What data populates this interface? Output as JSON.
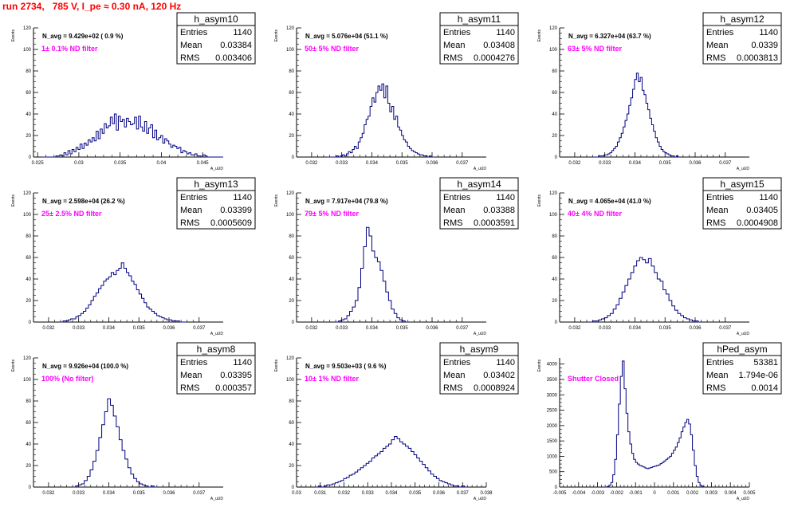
{
  "header": {
    "run_title": "run 2734,   785 V, I_pe ≈ 0.30 nA, 120 Hz"
  },
  "colors": {
    "title": "#ff0000",
    "filter_text": "#ff00ff",
    "histogram": "#000080",
    "axes": "#000000"
  },
  "stats_labels": {
    "entries": "Entries",
    "mean": "Mean",
    "rms": "RMS"
  },
  "common": {
    "y_label": "Events",
    "x_label": "A_uUD"
  },
  "chart_data": [
    {
      "type": "histogram",
      "name": "h_asym10",
      "navg": "N_avg = 9.429e+02 ( 0.9 %)",
      "filter": "1± 0.1% ND filter",
      "entries": "1140",
      "mean": "0.03384",
      "rms": "0.003406",
      "xlim": [
        0.0245,
        0.0475
      ],
      "ylim": [
        0,
        120
      ],
      "xticks": [
        0.025,
        0.03,
        0.035,
        0.04,
        0.045
      ],
      "xtick_labels": [
        "0.025",
        "0.03",
        "0.035",
        "0.04",
        "0.045"
      ],
      "yticks": [
        0,
        20,
        40,
        60,
        80,
        100,
        120
      ],
      "ytick_labels": [
        "0",
        "20",
        "40",
        "60",
        "80",
        "100",
        "120"
      ],
      "bins": [
        0.0255,
        0.0475
      ],
      "values": [
        0,
        0,
        0,
        0,
        0,
        0,
        0,
        1,
        1,
        2,
        1,
        4,
        2,
        6,
        3,
        7,
        5,
        9,
        7,
        12,
        8,
        13,
        11,
        16,
        14,
        18,
        15,
        24,
        17,
        26,
        22,
        31,
        27,
        29,
        37,
        31,
        40,
        25,
        38,
        33,
        35,
        28,
        36,
        33,
        30,
        31,
        37,
        26,
        38,
        28,
        24,
        33,
        22,
        27,
        30,
        18,
        25,
        16,
        18,
        20,
        13,
        17,
        15,
        12,
        9,
        11,
        10,
        8,
        9,
        4,
        6,
        5,
        3,
        4,
        2,
        2,
        3,
        1,
        1,
        0,
        2,
        1,
        0,
        0,
        0,
        0,
        0,
        0,
        0,
        0
      ]
    },
    {
      "type": "histogram",
      "name": "h_asym11",
      "navg": "N_avg = 5.076e+04 (51.1 %)",
      "filter": "50± 5% ND filter",
      "entries": "1140",
      "mean": "0.03408",
      "rms": "0.0004276",
      "xlim": [
        0.0315,
        0.0378
      ],
      "ylim": [
        0,
        120
      ],
      "xticks": [
        0.032,
        0.033,
        0.034,
        0.035,
        0.036,
        0.037
      ],
      "xtick_labels": [
        "0.032",
        "0.033",
        "0.034",
        "0.035",
        "0.036",
        "0.037"
      ],
      "yticks": [
        0,
        20,
        40,
        60,
        80,
        100,
        120
      ],
      "ytick_labels": [
        "0",
        "20",
        "40",
        "60",
        "80",
        "100",
        "120"
      ],
      "bins": [
        0.0325,
        0.0361
      ],
      "values": [
        0,
        0,
        0,
        0,
        0,
        1,
        0,
        1,
        2,
        1,
        3,
        5,
        4,
        7,
        10,
        8,
        14,
        18,
        22,
        30,
        35,
        38,
        47,
        55,
        51,
        60,
        66,
        62,
        68,
        55,
        66,
        50,
        42,
        47,
        35,
        38,
        28,
        25,
        20,
        16,
        14,
        10,
        8,
        6,
        5,
        4,
        3,
        2,
        2,
        1,
        1,
        0,
        1,
        0,
        0
      ]
    },
    {
      "type": "histogram",
      "name": "h_asym12",
      "navg": "N_avg = 6.327e+04 (63.7 %)",
      "filter": "63± 5% ND filter",
      "entries": "1140",
      "mean": "0.0339",
      "rms": "0.0003813",
      "xlim": [
        0.0315,
        0.0378
      ],
      "ylim": [
        0,
        120
      ],
      "xticks": [
        0.032,
        0.033,
        0.034,
        0.035,
        0.036,
        0.037
      ],
      "xtick_labels": [
        "0.032",
        "0.033",
        "0.034",
        "0.035",
        "0.036",
        "0.037"
      ],
      "yticks": [
        0,
        20,
        40,
        60,
        80,
        100,
        120
      ],
      "ytick_labels": [
        "0",
        "20",
        "40",
        "60",
        "80",
        "100",
        "120"
      ],
      "bins": [
        0.0326,
        0.0355
      ],
      "values": [
        0,
        0,
        0,
        1,
        1,
        1,
        2,
        2,
        3,
        4,
        6,
        8,
        10,
        14,
        18,
        22,
        28,
        34,
        40,
        48,
        55,
        63,
        72,
        78,
        70,
        74,
        62,
        58,
        50,
        44,
        36,
        30,
        24,
        18,
        14,
        10,
        7,
        5,
        4,
        3,
        2,
        1,
        1,
        0,
        1,
        0
      ]
    },
    {
      "type": "histogram",
      "name": "h_asym13",
      "navg": "N_avg = 2.598e+04 (26.2 %)",
      "filter": "25± 2.5% ND filter",
      "entries": "1140",
      "mean": "0.03399",
      "rms": "0.0005609",
      "xlim": [
        0.0315,
        0.0378
      ],
      "ylim": [
        0,
        120
      ],
      "xticks": [
        0.032,
        0.033,
        0.034,
        0.035,
        0.036,
        0.037
      ],
      "xtick_labels": [
        "0.032",
        "0.033",
        "0.034",
        "0.035",
        "0.036",
        "0.037"
      ],
      "yticks": [
        0,
        20,
        40,
        60,
        80,
        100,
        120
      ],
      "ytick_labels": [
        "0",
        "20",
        "40",
        "60",
        "80",
        "100",
        "120"
      ],
      "bins": [
        0.0324,
        0.0366
      ],
      "values": [
        0,
        1,
        1,
        2,
        3,
        3,
        5,
        6,
        8,
        10,
        13,
        16,
        20,
        24,
        27,
        31,
        34,
        38,
        40,
        42,
        46,
        44,
        48,
        50,
        55,
        50,
        46,
        43,
        38,
        35,
        30,
        26,
        22,
        18,
        14,
        12,
        10,
        8,
        6,
        5,
        4,
        3,
        2,
        2,
        1,
        1,
        1,
        0,
        0,
        0
      ]
    },
    {
      "type": "histogram",
      "name": "h_asym14",
      "navg": "N_avg = 7.917e+04 (79.8 %)",
      "filter": "79± 5% ND filter",
      "entries": "1140",
      "mean": "0.03388",
      "rms": "0.0003591",
      "xlim": [
        0.0315,
        0.0378
      ],
      "ylim": [
        0,
        120
      ],
      "xticks": [
        0.032,
        0.033,
        0.034,
        0.035,
        0.036,
        0.037
      ],
      "xtick_labels": [
        "0.032",
        "0.033",
        "0.034",
        "0.035",
        "0.036",
        "0.037"
      ],
      "yticks": [
        0,
        20,
        40,
        60,
        80,
        100,
        120
      ],
      "ytick_labels": [
        "0",
        "20",
        "40",
        "60",
        "80",
        "100",
        "120"
      ],
      "bins": [
        0.0328,
        0.0352
      ],
      "values": [
        0,
        1,
        2,
        3,
        6,
        10,
        14,
        20,
        32,
        50,
        70,
        88,
        80,
        66,
        60,
        56,
        48,
        38,
        28,
        20,
        12,
        8,
        4,
        2,
        1,
        0
      ]
    },
    {
      "type": "histogram",
      "name": "h_asym15",
      "navg": "N_avg = 4.065e+04 (41.0 %)",
      "filter": "40± 4% ND filter",
      "entries": "1140",
      "mean": "0.03405",
      "rms": "0.0004908",
      "xlim": [
        0.0315,
        0.0378
      ],
      "ylim": [
        0,
        120
      ],
      "xticks": [
        0.032,
        0.033,
        0.034,
        0.035,
        0.036,
        0.037
      ],
      "xtick_labels": [
        "0.032",
        "0.033",
        "0.034",
        "0.035",
        "0.036",
        "0.037"
      ],
      "yticks": [
        0,
        20,
        40,
        60,
        80,
        100,
        120
      ],
      "ytick_labels": [
        "0",
        "20",
        "40",
        "60",
        "80",
        "100",
        "120"
      ],
      "bins": [
        0.0325,
        0.0362
      ],
      "values": [
        0,
        1,
        1,
        2,
        3,
        4,
        6,
        8,
        12,
        16,
        22,
        28,
        34,
        40,
        46,
        52,
        57,
        60,
        58,
        55,
        59,
        52,
        46,
        40,
        38,
        30,
        26,
        20,
        15,
        11,
        8,
        6,
        4,
        3,
        2,
        1,
        1,
        0
      ]
    },
    {
      "type": "histogram",
      "name": "h_asym8",
      "navg": "N_avg = 9.926e+04 (100.0 %)",
      "filter": "100% (No filter)",
      "entries": "1140",
      "mean": "0.03395",
      "rms": "0.000357",
      "xlim": [
        0.0315,
        0.0378
      ],
      "ylim": [
        0,
        120
      ],
      "xticks": [
        0.032,
        0.033,
        0.034,
        0.035,
        0.036,
        0.037
      ],
      "xtick_labels": [
        "0.032",
        "0.033",
        "0.034",
        "0.035",
        "0.036",
        "0.037"
      ],
      "yticks": [
        0,
        20,
        40,
        60,
        80,
        100,
        120
      ],
      "ytick_labels": [
        "0",
        "20",
        "40",
        "60",
        "80",
        "100",
        "120"
      ],
      "bins": [
        0.0328,
        0.0356
      ],
      "values": [
        0,
        1,
        2,
        3,
        6,
        10,
        16,
        24,
        34,
        46,
        58,
        70,
        82,
        76,
        66,
        56,
        44,
        34,
        26,
        18,
        12,
        8,
        5,
        3,
        2,
        1,
        0,
        1,
        0
      ]
    },
    {
      "type": "histogram",
      "name": "h_asym9",
      "navg": "N_avg = 9.503e+03 ( 9.6 %)",
      "filter": "10± 1% ND filter",
      "entries": "1140",
      "mean": "0.03402",
      "rms": "0.0008924",
      "xlim": [
        0.03,
        0.038
      ],
      "ylim": [
        0,
        120
      ],
      "xticks": [
        0.03,
        0.031,
        0.032,
        0.033,
        0.034,
        0.035,
        0.036,
        0.037,
        0.038
      ],
      "xtick_labels": [
        "0.03",
        "0.031",
        "0.032",
        "0.033",
        "0.034",
        "0.035",
        "0.036",
        "0.037",
        "0.038"
      ],
      "yticks": [
        0,
        20,
        40,
        60,
        80,
        100,
        120
      ],
      "ytick_labels": [
        "0",
        "20",
        "40",
        "60",
        "80",
        "100",
        "120"
      ],
      "bins": [
        0.0308,
        0.0372
      ],
      "values": [
        0,
        1,
        0,
        1,
        2,
        2,
        3,
        4,
        5,
        6,
        8,
        9,
        11,
        12,
        14,
        16,
        18,
        20,
        22,
        24,
        27,
        29,
        31,
        33,
        36,
        38,
        40,
        44,
        47,
        45,
        42,
        40,
        38,
        36,
        33,
        30,
        27,
        24,
        21,
        18,
        15,
        12,
        10,
        8,
        6,
        5,
        4,
        3,
        2,
        1,
        1,
        0,
        1,
        0
      ]
    },
    {
      "type": "histogram",
      "name": "hPed_asym",
      "navg": "",
      "filter": "Shutter Closed",
      "entries": "53381",
      "mean": "1.794e-06",
      "rms": "0.0014",
      "xlim": [
        -0.005,
        0.005
      ],
      "ylim": [
        0,
        4200
      ],
      "xticks": [
        -0.005,
        -0.004,
        -0.003,
        -0.002,
        -0.001,
        0,
        0.001,
        0.002,
        0.003,
        0.004,
        0.005
      ],
      "xtick_labels": [
        "-0.005",
        "-0.004",
        "-0.003",
        "-0.002",
        "-0.001",
        "0",
        "0.001",
        "0.002",
        "0.003",
        "0.004",
        "0.005"
      ],
      "yticks": [
        0,
        500,
        1000,
        1500,
        2000,
        2500,
        3000,
        3500,
        4000
      ],
      "ytick_labels": [
        "0",
        "500",
        "1000",
        "1500",
        "2000",
        "2500",
        "3000",
        "3500",
        "4000"
      ],
      "bins": [
        -0.0026,
        0.0026
      ],
      "values": [
        0,
        20,
        60,
        150,
        400,
        900,
        1700,
        2700,
        3600,
        4100,
        3200,
        2400,
        1800,
        1400,
        1100,
        900,
        800,
        750,
        700,
        680,
        650,
        620,
        600,
        620,
        640,
        660,
        680,
        700,
        720,
        760,
        800,
        850,
        900,
        950,
        1000,
        1100,
        1200,
        1300,
        1450,
        1600,
        1800,
        1950,
        2100,
        2200,
        2050,
        1700,
        1200,
        700,
        350,
        150,
        60,
        20
      ]
    }
  ]
}
